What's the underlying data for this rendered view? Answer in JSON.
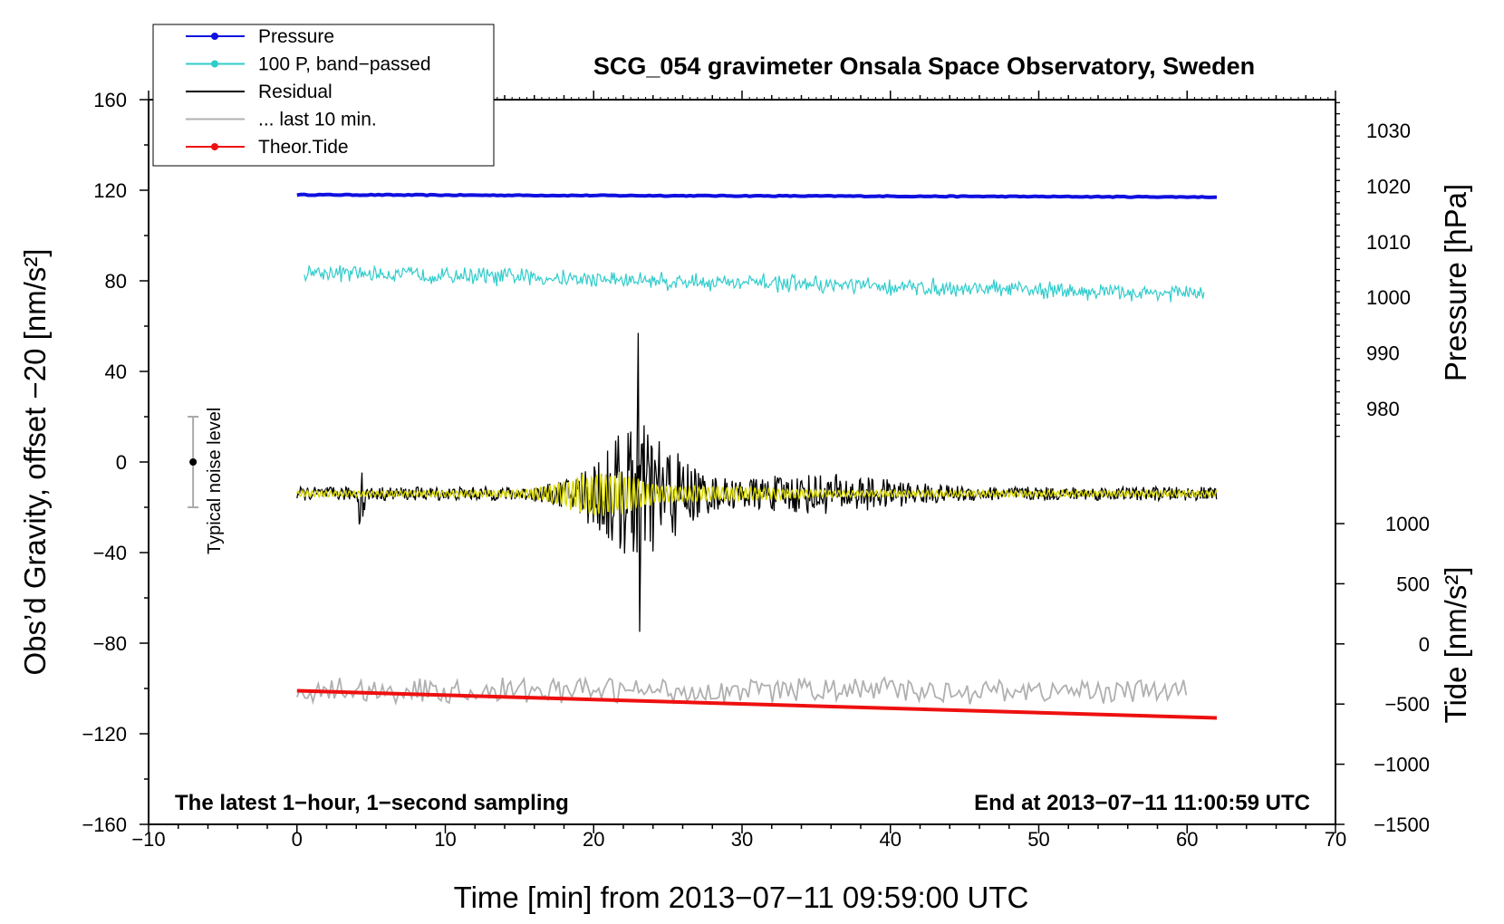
{
  "chart_data": {
    "type": "line",
    "title": "SCG_054 gravimeter Onsala Space Observatory, Sweden",
    "xlabel": "Time [min] from 2013−07−11 09:59:00 UTC",
    "ylabel_left": "Obs’d Gravity, offset −20 [nm/s²]",
    "ylabel_right_pressure": "Pressure [hPa]",
    "ylabel_right_tide": "Tide [nm/s²]",
    "xlim": [
      -10,
      70
    ],
    "ylim_left": [
      -160,
      160
    ],
    "x_ticks": [
      -10,
      0,
      10,
      20,
      30,
      40,
      50,
      60,
      70
    ],
    "x_tick_labels": [
      "−10",
      "0",
      "10",
      "20",
      "30",
      "40",
      "50",
      "60",
      "70"
    ],
    "y_ticks_left": [
      160,
      120,
      80,
      40,
      0,
      -40,
      -80,
      -120,
      -160
    ],
    "y_tick_labels_left": [
      "160",
      "120",
      "80",
      "40",
      "0",
      "−40",
      "−80",
      "−120",
      "−160"
    ],
    "pressure_ticks": [
      1030,
      1020,
      1010,
      1000,
      990,
      980
    ],
    "pressure_tick_labels": [
      "1030",
      "1020",
      "1010",
      "1000",
      "990",
      "980"
    ],
    "tide_ticks": [
      1000,
      500,
      0,
      -500,
      -1000,
      -1500
    ],
    "tide_tick_labels": [
      "1000",
      "500",
      "0",
      "−500",
      "−1000",
      "−1500"
    ],
    "legend": [
      {
        "label": "Pressure",
        "color": "#1010e0",
        "marker": true
      },
      {
        "label": "100 P, band−passed",
        "color": "#30cccc",
        "marker": true
      },
      {
        "label": "Residual",
        "color": "#000000",
        "marker": false
      },
      {
        "label": "... last 10 min.",
        "color": "#b0b0b0",
        "marker": false
      },
      {
        "label": "Theor.Tide",
        "color": "#ee1010",
        "marker": true
      }
    ],
    "series": [
      {
        "name": "Pressure",
        "color": "#1010e0",
        "x_range": [
          0,
          62
        ],
        "y_start": 118,
        "y_end": 117
      },
      {
        "name": "100 P, band-passed",
        "color": "#30cccc",
        "x_range": [
          0,
          62
        ],
        "y_start": 84,
        "y_end": 74,
        "amplitude": 3
      },
      {
        "name": "Residual",
        "color": "#000000",
        "x_range": [
          0,
          62
        ],
        "baseline": -14,
        "peak_x": 23,
        "peak_max": 57,
        "peak_min": -75
      },
      {
        "name": "Residual filtered",
        "color": "#d8d800",
        "x_range": [
          0,
          62
        ],
        "baseline": -14
      },
      {
        "name": "... last 10 min.",
        "color": "#b0b0b0",
        "x_range": [
          0,
          60
        ],
        "baseline": -101,
        "amplitude": 6
      },
      {
        "name": "Theor.Tide",
        "color": "#ee1010",
        "x_range": [
          0,
          62
        ],
        "y_start": -101,
        "y_end": -113
      }
    ],
    "noise_bar": {
      "label": "Typical noise level",
      "x": -7,
      "center": 0,
      "low": -20,
      "high": 20
    },
    "annotation_left": "The latest 1−hour, 1−second sampling",
    "annotation_right": "End at 2013−07−11 11:00:59 UTC",
    "grid": false,
    "legend_position": "top-left"
  }
}
